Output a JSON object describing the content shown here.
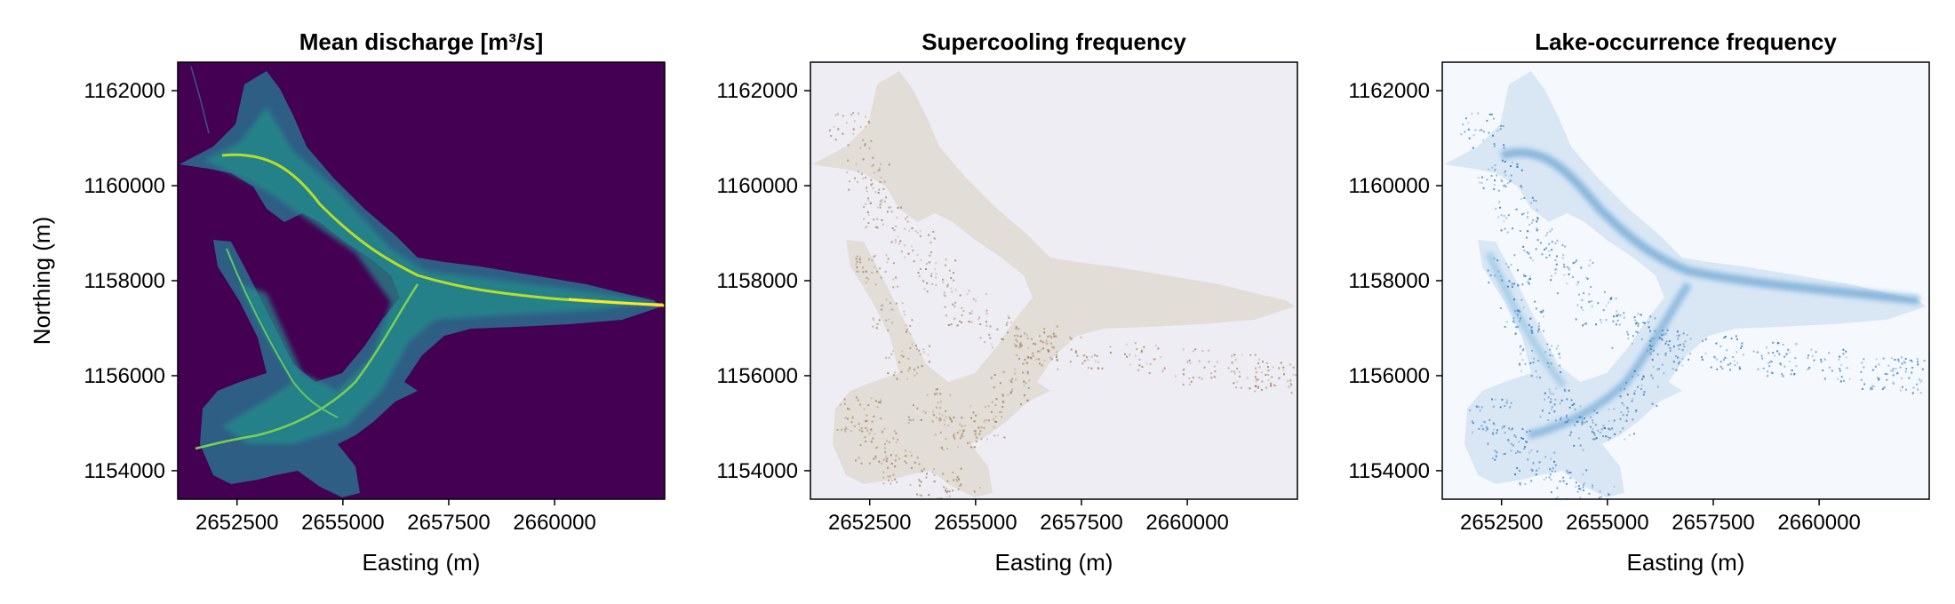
{
  "chart_data": [
    {
      "type": "heatmap",
      "title": "Mean discharge [m³/s]",
      "xlabel": "Easting (m)",
      "ylabel": "Northing (m)",
      "xlim": [
        2651100,
        2662600
      ],
      "ylim": [
        1153400,
        1162600
      ],
      "x_ticks": [
        2652500,
        2655000,
        2657500,
        2660000
      ],
      "y_ticks": [
        1154000,
        1156000,
        1158000,
        1160000,
        1162000
      ],
      "colormap": "viridis",
      "background_color": "#440154",
      "grid": false
    },
    {
      "type": "heatmap",
      "title": "Supercooling frequency",
      "xlabel": "Easting (m)",
      "ylabel": "",
      "xlim": [
        2651100,
        2662600
      ],
      "ylim": [
        1153400,
        1162600
      ],
      "x_ticks": [
        2652500,
        2655000,
        2657500,
        2660000
      ],
      "y_ticks": [
        1154000,
        1156000,
        1158000,
        1160000,
        1162000
      ],
      "colormap": "brown-beige",
      "background_color": "#eeedf3",
      "grid": false
    },
    {
      "type": "heatmap",
      "title": "Lake-occurrence frequency",
      "xlabel": "Easting (m)",
      "ylabel": "",
      "xlim": [
        2651100,
        2662600
      ],
      "ylim": [
        1153400,
        1162600
      ],
      "x_ticks": [
        2652500,
        2655000,
        2657500,
        2660000
      ],
      "y_ticks": [
        1154000,
        1156000,
        1158000,
        1160000,
        1162000
      ],
      "colormap": "blues",
      "background_color": "#f5f9fe",
      "grid": false
    }
  ]
}
